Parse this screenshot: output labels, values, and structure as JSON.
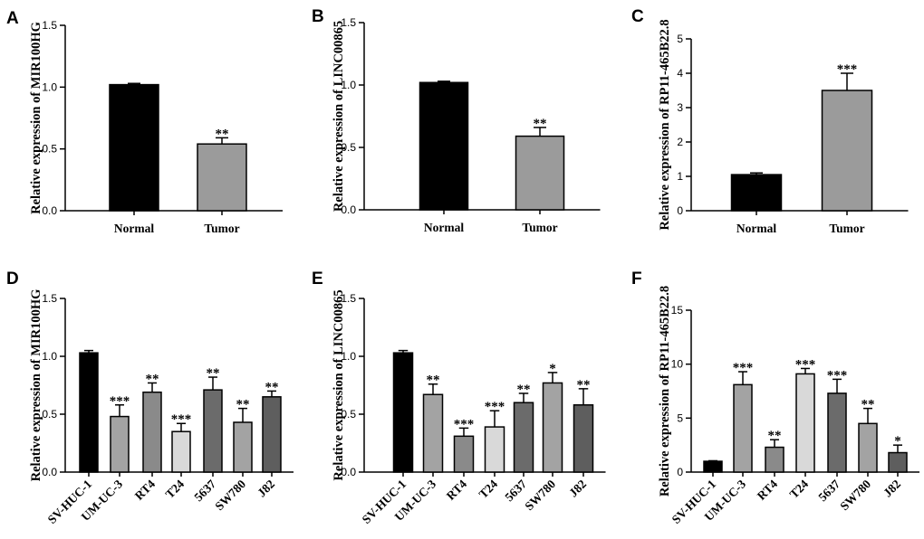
{
  "chart_data": [
    {
      "panel": "A",
      "type": "bar",
      "ylabel": "Relative expression of MIR100HG",
      "ylim": [
        0,
        1.5
      ],
      "yticks": [
        "0.0",
        "0.5",
        "1.0",
        "1.5"
      ],
      "categories": [
        "Normal",
        "Tumor"
      ],
      "values": [
        1.02,
        0.54
      ],
      "errors": [
        0.01,
        0.05
      ],
      "significance": [
        "",
        "**"
      ],
      "colors": [
        "#000000",
        "#9b9b9b"
      ]
    },
    {
      "panel": "B",
      "type": "bar",
      "ylabel": "Relative expression of LINC00865",
      "ylim": [
        0,
        1.5
      ],
      "yticks": [
        "0.0",
        "0.5",
        "1.0",
        "1.5"
      ],
      "categories": [
        "Normal",
        "Tumor"
      ],
      "values": [
        1.02,
        0.59
      ],
      "errors": [
        0.01,
        0.07
      ],
      "significance": [
        "",
        "**"
      ],
      "colors": [
        "#000000",
        "#9b9b9b"
      ]
    },
    {
      "panel": "C",
      "type": "bar",
      "ylabel": "Relative expression of RP11-465B22.8",
      "ylim": [
        0,
        5
      ],
      "yticks": [
        "0",
        "1",
        "2",
        "3",
        "4",
        "5"
      ],
      "categories": [
        "Normal",
        "Tumor"
      ],
      "values": [
        1.05,
        3.5
      ],
      "errors": [
        0.05,
        0.5
      ],
      "significance": [
        "",
        "***"
      ],
      "colors": [
        "#000000",
        "#9b9b9b"
      ]
    },
    {
      "panel": "D",
      "type": "bar",
      "ylabel": "Relative expression of MIR100HG",
      "ylim": [
        0,
        1.5
      ],
      "yticks": [
        "0.0",
        "0.5",
        "1.0",
        "1.5"
      ],
      "categories": [
        "SV-HUC-1",
        "UM-UC-3",
        "RT4",
        "T24",
        "5637",
        "SW780",
        "J82"
      ],
      "values": [
        1.03,
        0.48,
        0.69,
        0.35,
        0.71,
        0.43,
        0.65
      ],
      "errors": [
        0.02,
        0.1,
        0.08,
        0.07,
        0.11,
        0.12,
        0.05
      ],
      "significance": [
        "",
        "***",
        "**",
        "***",
        "**",
        "**",
        "**"
      ],
      "colors": [
        "#000000",
        "#a3a3a3",
        "#8a8a8a",
        "#d9d9d9",
        "#6b6b6b",
        "#a3a3a3",
        "#5e5e5e"
      ]
    },
    {
      "panel": "E",
      "type": "bar",
      "ylabel": "Relative expression of LINC00865",
      "ylim": [
        0,
        1.5
      ],
      "yticks": [
        "0.0",
        "0.5",
        "1.0",
        "1.5"
      ],
      "categories": [
        "SV-HUC-1",
        "UM-UC-3",
        "RT4",
        "T24",
        "5637",
        "SW780",
        "J82"
      ],
      "values": [
        1.03,
        0.67,
        0.31,
        0.39,
        0.6,
        0.77,
        0.58
      ],
      "errors": [
        0.02,
        0.09,
        0.07,
        0.14,
        0.08,
        0.09,
        0.14
      ],
      "significance": [
        "",
        "**",
        "***",
        "***",
        "**",
        "*",
        "**"
      ],
      "colors": [
        "#000000",
        "#a3a3a3",
        "#8a8a8a",
        "#d9d9d9",
        "#6b6b6b",
        "#a3a3a3",
        "#5e5e5e"
      ]
    },
    {
      "panel": "F",
      "type": "bar",
      "ylabel": "Relative expression of RP11-465B22.8",
      "ylim": [
        0,
        15
      ],
      "yticks": [
        "0",
        "5",
        "10",
        "15"
      ],
      "categories": [
        "SV-HUC-1",
        "UM-UC-3",
        "RT4",
        "T24",
        "5637",
        "SW780",
        "J82"
      ],
      "values": [
        1.0,
        8.1,
        2.3,
        9.1,
        7.3,
        4.5,
        1.8
      ],
      "errors": [
        0.05,
        1.2,
        0.7,
        0.5,
        1.3,
        1.4,
        0.7
      ],
      "significance": [
        "",
        "***",
        "**",
        "***",
        "***",
        "**",
        "*"
      ],
      "colors": [
        "#000000",
        "#a3a3a3",
        "#8a8a8a",
        "#d9d9d9",
        "#6b6b6b",
        "#a3a3a3",
        "#5e5e5e"
      ]
    }
  ]
}
